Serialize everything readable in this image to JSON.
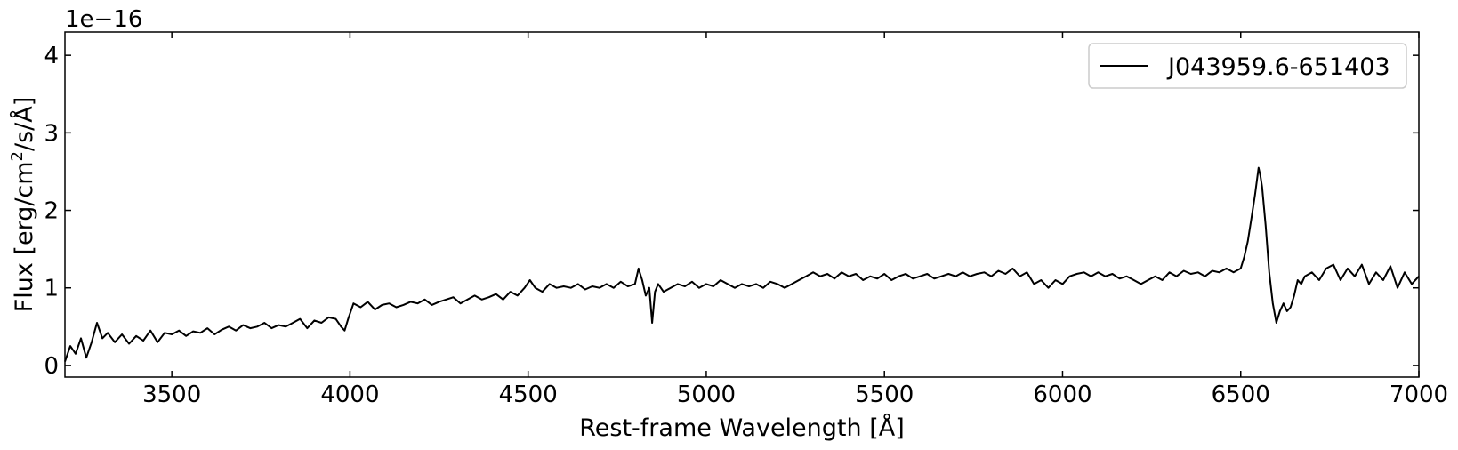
{
  "chart_data": {
    "type": "line",
    "title": "",
    "xlabel": "Rest-frame Wavelength [Å]",
    "ylabel": "Flux [erg/cm²/s/Å]",
    "ylabel_parts": {
      "pre": "Flux [erg/cm",
      "sup": "2",
      "post": "/s/Å]"
    },
    "offset_text": "1e−16",
    "xlim": [
      3200,
      7000
    ],
    "ylim": [
      -0.15,
      4.3
    ],
    "xticks": [
      3500,
      4000,
      4500,
      5000,
      5500,
      6000,
      6500,
      7000
    ],
    "xtick_labels": [
      "3500",
      "4000",
      "4500",
      "5000",
      "5500",
      "6000",
      "6500",
      "7000"
    ],
    "yticks": [
      0,
      1,
      2,
      3,
      4
    ],
    "ytick_labels": [
      "0",
      "1",
      "2",
      "3",
      "4"
    ],
    "grid": false,
    "legend_position": "top-right",
    "series": [
      {
        "name": "J043959.6-651403",
        "color": "#000000",
        "x": [
          3200,
          3215,
          3230,
          3245,
          3260,
          3275,
          3290,
          3305,
          3320,
          3340,
          3360,
          3380,
          3400,
          3420,
          3440,
          3460,
          3480,
          3500,
          3520,
          3540,
          3560,
          3580,
          3600,
          3620,
          3640,
          3660,
          3680,
          3700,
          3720,
          3740,
          3760,
          3780,
          3800,
          3820,
          3840,
          3860,
          3880,
          3900,
          3920,
          3940,
          3960,
          3975,
          3985,
          3995,
          4010,
          4030,
          4050,
          4070,
          4090,
          4110,
          4130,
          4150,
          4170,
          4190,
          4210,
          4230,
          4250,
          4270,
          4290,
          4310,
          4330,
          4350,
          4370,
          4390,
          4410,
          4430,
          4450,
          4470,
          4490,
          4505,
          4520,
          4540,
          4560,
          4580,
          4600,
          4620,
          4640,
          4660,
          4680,
          4700,
          4720,
          4740,
          4760,
          4780,
          4800,
          4810,
          4820,
          4830,
          4840,
          4848,
          4856,
          4865,
          4880,
          4900,
          4920,
          4940,
          4960,
          4980,
          5000,
          5020,
          5040,
          5060,
          5080,
          5100,
          5120,
          5140,
          5160,
          5180,
          5200,
          5220,
          5240,
          5260,
          5280,
          5300,
          5320,
          5340,
          5360,
          5380,
          5400,
          5420,
          5440,
          5460,
          5480,
          5500,
          5520,
          5540,
          5560,
          5580,
          5600,
          5620,
          5640,
          5660,
          5680,
          5700,
          5720,
          5740,
          5760,
          5780,
          5800,
          5820,
          5840,
          5860,
          5880,
          5900,
          5920,
          5940,
          5960,
          5980,
          6000,
          6020,
          6040,
          6060,
          6080,
          6100,
          6120,
          6140,
          6160,
          6180,
          6200,
          6220,
          6240,
          6260,
          6280,
          6300,
          6320,
          6340,
          6360,
          6380,
          6400,
          6420,
          6440,
          6460,
          6480,
          6500,
          6510,
          6520,
          6530,
          6540,
          6550,
          6555,
          6560,
          6570,
          6580,
          6590,
          6600,
          6610,
          6620,
          6630,
          6640,
          6650,
          6660,
          6670,
          6680,
          6700,
          6720,
          6740,
          6760,
          6780,
          6800,
          6820,
          6840,
          6860,
          6880,
          6900,
          6920,
          6940,
          6960,
          6980,
          7000
        ],
        "y": [
          0.05,
          0.25,
          0.15,
          0.35,
          0.1,
          0.3,
          0.55,
          0.35,
          0.42,
          0.3,
          0.4,
          0.28,
          0.38,
          0.32,
          0.45,
          0.3,
          0.42,
          0.4,
          0.45,
          0.38,
          0.44,
          0.42,
          0.48,
          0.4,
          0.46,
          0.5,
          0.45,
          0.52,
          0.48,
          0.5,
          0.55,
          0.48,
          0.52,
          0.5,
          0.55,
          0.6,
          0.48,
          0.58,
          0.55,
          0.62,
          0.6,
          0.5,
          0.45,
          0.6,
          0.8,
          0.75,
          0.82,
          0.72,
          0.78,
          0.8,
          0.75,
          0.78,
          0.82,
          0.8,
          0.85,
          0.78,
          0.82,
          0.85,
          0.88,
          0.8,
          0.85,
          0.9,
          0.85,
          0.88,
          0.92,
          0.85,
          0.95,
          0.9,
          1.0,
          1.1,
          1.0,
          0.95,
          1.05,
          1.0,
          1.02,
          1.0,
          1.05,
          0.98,
          1.02,
          1.0,
          1.05,
          1.0,
          1.08,
          1.02,
          1.05,
          1.25,
          1.1,
          0.9,
          1.0,
          0.55,
          0.95,
          1.05,
          0.95,
          1.0,
          1.05,
          1.02,
          1.08,
          1.0,
          1.05,
          1.02,
          1.1,
          1.05,
          1.0,
          1.05,
          1.02,
          1.05,
          1.0,
          1.08,
          1.05,
          1.0,
          1.05,
          1.1,
          1.15,
          1.2,
          1.15,
          1.18,
          1.12,
          1.2,
          1.15,
          1.18,
          1.1,
          1.15,
          1.12,
          1.18,
          1.1,
          1.15,
          1.18,
          1.12,
          1.15,
          1.18,
          1.12,
          1.15,
          1.18,
          1.15,
          1.2,
          1.15,
          1.18,
          1.2,
          1.15,
          1.22,
          1.18,
          1.25,
          1.15,
          1.2,
          1.05,
          1.1,
          1.0,
          1.1,
          1.05,
          1.15,
          1.18,
          1.2,
          1.15,
          1.2,
          1.15,
          1.18,
          1.12,
          1.15,
          1.1,
          1.05,
          1.1,
          1.15,
          1.1,
          1.2,
          1.15,
          1.22,
          1.18,
          1.2,
          1.15,
          1.22,
          1.2,
          1.25,
          1.2,
          1.25,
          1.4,
          1.6,
          1.9,
          2.2,
          2.55,
          2.45,
          2.3,
          1.8,
          1.2,
          0.8,
          0.55,
          0.7,
          0.8,
          0.7,
          0.75,
          0.9,
          1.1,
          1.05,
          1.15,
          1.2,
          1.1,
          1.25,
          1.3,
          1.1,
          1.25,
          1.15,
          1.3,
          1.05,
          1.2,
          1.1,
          1.28,
          1.0,
          1.2,
          1.05,
          1.15
        ]
      }
    ]
  }
}
